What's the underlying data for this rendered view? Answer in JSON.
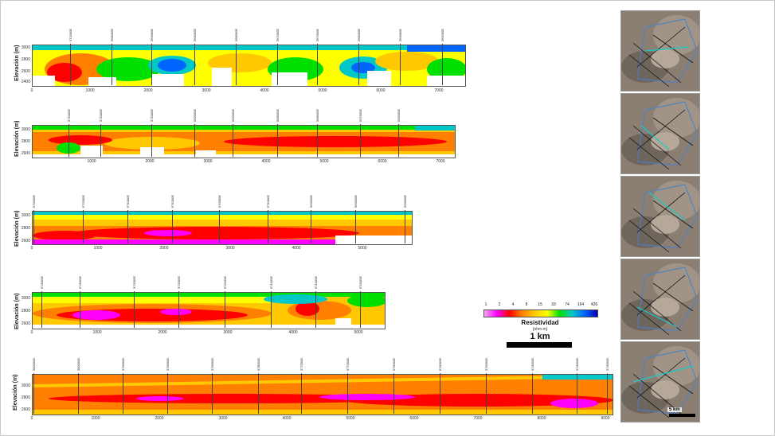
{
  "colors": {
    "scale": [
      "#f0a8f0",
      "#ff00ff",
      "#ff0000",
      "#ff8000",
      "#ffc800",
      "#ffff00",
      "#00e000",
      "#00c8c8",
      "#0064ff",
      "#0000b0"
    ]
  },
  "sections": [
    {
      "ylabel": "Elevación (m)",
      "yticks": [
        "3000",
        "2800",
        "2600",
        "2400"
      ],
      "xticks": [
        "0",
        "1000",
        "2000",
        "3000",
        "4000",
        "5000",
        "6000",
        "7000"
      ],
      "stations": [
        "572000E",
        "568000E",
        "566000E",
        "566000E",
        "568000E",
        "567000E",
        "567000E",
        "568000E",
        "566000E",
        "565000E"
      ]
    },
    {
      "ylabel": "Elevación (m)",
      "yticks": [
        "3000",
        "2800",
        "2600"
      ],
      "xticks": [
        "1000",
        "2000",
        "3000",
        "4000",
        "5000",
        "6000",
        "7000"
      ],
      "stations": [
        "572000E",
        "572000E",
        "572000E",
        "569000E",
        "569000E",
        "568000E",
        "568000E",
        "567000E",
        "566000E"
      ]
    },
    {
      "ylabel": "Elevación (m)",
      "yticks": [
        "3000",
        "2800",
        "2600"
      ],
      "xticks": [
        "0",
        "1000",
        "2000",
        "3000",
        "4000",
        "5000"
      ],
      "stations": [
        "572000E",
        "572000E",
        "571000E",
        "571000E",
        "570000E",
        "571000E",
        "569000E",
        "569000E",
        "569000E"
      ]
    },
    {
      "ylabel": "Elevación (m)",
      "yticks": [
        "3000",
        "2800",
        "2600"
      ],
      "xticks": [
        "0",
        "1000",
        "2000",
        "3000",
        "4000",
        "5000"
      ],
      "stations": [
        "574000E",
        "573000E",
        "572000E",
        "572000E",
        "572000E",
        "571000E",
        "571000E",
        "570000E"
      ]
    },
    {
      "ylabel": "Elevación (m)",
      "yticks": [
        "3000",
        "2800",
        "2600"
      ],
      "xticks": [
        "0",
        "1000",
        "2000",
        "3000",
        "4000",
        "5000",
        "6000",
        "7000",
        "8000",
        "9000"
      ],
      "stations": [
        "580000E",
        "580000E",
        "579000E",
        "579000E",
        "579000E",
        "578000E",
        "577000E",
        "577000E",
        "576000E",
        "576000E",
        "575000E",
        "574000E",
        "574000E",
        "573000E"
      ]
    }
  ],
  "legend": {
    "values": [
      "1",
      "2",
      "4",
      "8",
      "15",
      "33",
      "74",
      "164",
      "426"
    ],
    "title": "Resistividad",
    "unit": "[ohm.m]",
    "scale_label": "1 km"
  },
  "map_scale_label": "5 km"
}
